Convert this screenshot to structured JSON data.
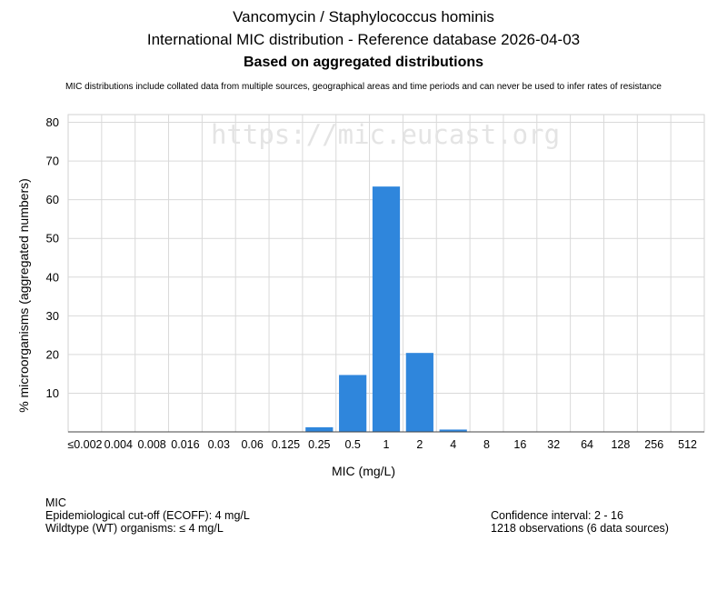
{
  "header": {
    "title": "Vancomycin / Staphylococcus hominis",
    "subtitle": "International MIC distribution - Reference database 2026-04-03",
    "basis": "Based on aggregated distributions",
    "disclaimer": "MIC distributions include collated data from multiple sources, geographical areas and time periods and can never be used to infer rates of resistance"
  },
  "watermark": "https://mic.eucast.org",
  "chart_data": {
    "type": "bar",
    "categories": [
      "≤0.002",
      "0.004",
      "0.008",
      "0.016",
      "0.03",
      "0.06",
      "0.125",
      "0.25",
      "0.5",
      "1",
      "2",
      "4",
      "8",
      "16",
      "32",
      "64",
      "128",
      "256",
      "512"
    ],
    "values": [
      0,
      0,
      0,
      0,
      0,
      0,
      0,
      1.2,
      14.7,
      63.4,
      20.4,
      0.6,
      0,
      0,
      0,
      0,
      0,
      0,
      0
    ],
    "xlabel": "MIC (mg/L)",
    "ylabel": "% microorganisms (aggregated numbers)",
    "ylim": [
      0,
      82
    ],
    "yticks": [
      10,
      20,
      30,
      40,
      50,
      60,
      70,
      80
    ],
    "grid": true,
    "bar_color": "#2f86dc"
  },
  "footer": {
    "left": {
      "line1": "MIC",
      "line2": "Epidemiological cut-off (ECOFF): 4 mg/L",
      "line3": "Wildtype (WT) organisms: ≤ 4 mg/L"
    },
    "right": {
      "line1": "Confidence interval: 2 - 16",
      "line2": "1218 observations (6 data sources)"
    }
  }
}
